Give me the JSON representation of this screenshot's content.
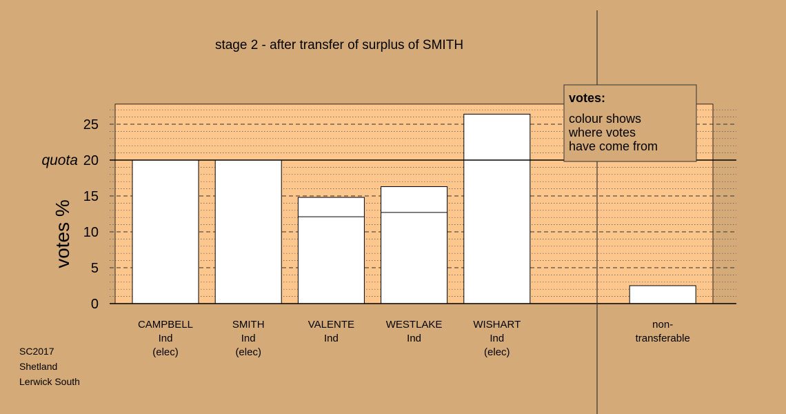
{
  "chart_data": {
    "type": "bar",
    "title": "stage 2 - after transfer of surplus of SMITH",
    "ylabel": "votes %",
    "ylim": [
      0,
      27.8
    ],
    "yticks": [
      0,
      5,
      10,
      15,
      20,
      25
    ],
    "quota": {
      "label": "quota",
      "value": 20
    },
    "categories": [
      {
        "lines": [
          "CAMPBELL",
          "Ind",
          "(elec)"
        ],
        "value": 20.0,
        "previous": null
      },
      {
        "lines": [
          "SMITH",
          "Ind",
          "(elec)"
        ],
        "value": 20.0,
        "previous": null
      },
      {
        "lines": [
          "VALENTE",
          "Ind"
        ],
        "value": 14.8,
        "previous": 12.1
      },
      {
        "lines": [
          "WESTLAKE",
          "Ind"
        ],
        "value": 16.3,
        "previous": 12.7
      },
      {
        "lines": [
          "WISHART",
          "Ind",
          "(elec)"
        ],
        "value": 26.4,
        "previous": null
      },
      {
        "lines": [
          "non-",
          "transferable"
        ],
        "value": 2.5,
        "previous": null,
        "separate": true
      }
    ],
    "legend": {
      "title": "votes:",
      "lines": [
        "colour shows",
        "where votes",
        "have come from"
      ],
      "placement": "top-right"
    },
    "grid": true
  },
  "footer": {
    "lines": [
      "SC2017",
      "Shetland",
      "Lerwick South"
    ]
  },
  "colors": {
    "background": "#d4aa78",
    "plot_band": "#fcc68c",
    "bar": "#ffffff",
    "gridline": "#555555"
  }
}
